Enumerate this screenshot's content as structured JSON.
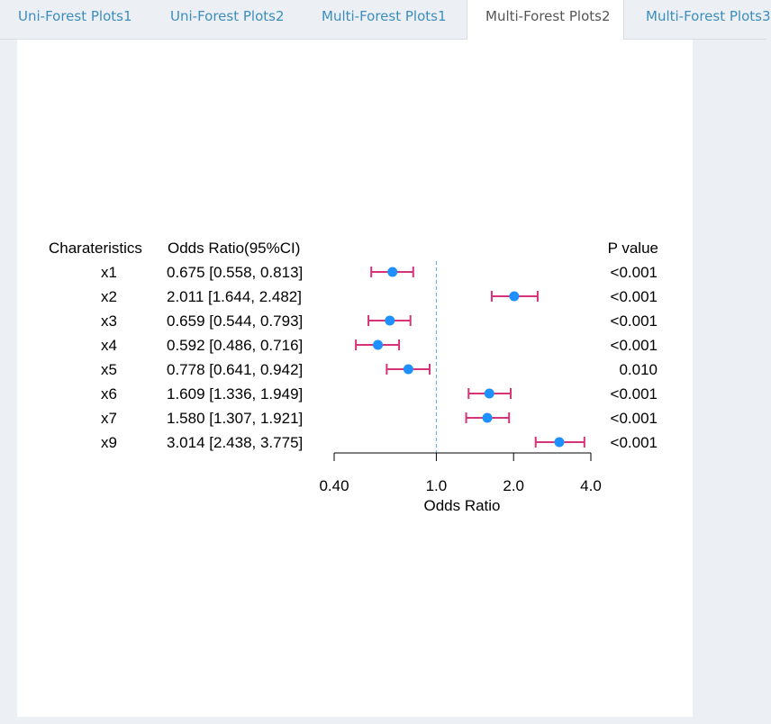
{
  "tabs": [
    {
      "label": "Uni-Forest Plots1",
      "active": false
    },
    {
      "label": "Uni-Forest Plots2",
      "active": false
    },
    {
      "label": "Multi-Forest Plots1",
      "active": false
    },
    {
      "label": "Multi-Forest Plots2",
      "active": true
    },
    {
      "label": "Multi-Forest Plots3",
      "active": false
    }
  ],
  "chart_data": {
    "type": "forest",
    "headers": {
      "characteristics": "Charateristics",
      "odds_ratio": "Odds Ratio(95%CI)",
      "p_value": "P value"
    },
    "rows": [
      {
        "label": "x1",
        "or": 0.675,
        "lower": 0.558,
        "upper": 0.813,
        "or_text": "0.675 [0.558, 0.813]",
        "p": "<0.001"
      },
      {
        "label": "x2",
        "or": 2.011,
        "lower": 1.644,
        "upper": 2.482,
        "or_text": "2.011 [1.644, 2.482]",
        "p": "<0.001"
      },
      {
        "label": "x3",
        "or": 0.659,
        "lower": 0.544,
        "upper": 0.793,
        "or_text": "0.659 [0.544, 0.793]",
        "p": "<0.001"
      },
      {
        "label": "x4",
        "or": 0.592,
        "lower": 0.486,
        "upper": 0.716,
        "or_text": "0.592 [0.486, 0.716]",
        "p": "<0.001"
      },
      {
        "label": "x5",
        "or": 0.778,
        "lower": 0.641,
        "upper": 0.942,
        "or_text": "0.778 [0.641, 0.942]",
        "p": "0.010"
      },
      {
        "label": "x6",
        "or": 1.609,
        "lower": 1.336,
        "upper": 1.949,
        "or_text": "1.609 [1.336, 1.949]",
        "p": "<0.001"
      },
      {
        "label": "x7",
        "or": 1.58,
        "lower": 1.307,
        "upper": 1.921,
        "or_text": "1.580 [1.307, 1.921]",
        "p": "<0.001"
      },
      {
        "label": "x9",
        "or": 3.014,
        "lower": 2.438,
        "upper": 3.775,
        "or_text": "3.014 [2.438, 3.775]",
        "p": "<0.001"
      }
    ],
    "x_axis": {
      "label": "Odds Ratio",
      "scale": "log",
      "range": [
        0.4,
        4.0
      ],
      "ticks": [
        0.4,
        1.0,
        2.0,
        4.0
      ],
      "tick_labels": [
        "0.40",
        "1.0",
        "2.0",
        "4.0"
      ],
      "reference": 1.0
    },
    "colors": {
      "point": "#1e90ff",
      "ci": "#d6337a",
      "reference_line": "#5aa9d6"
    }
  }
}
